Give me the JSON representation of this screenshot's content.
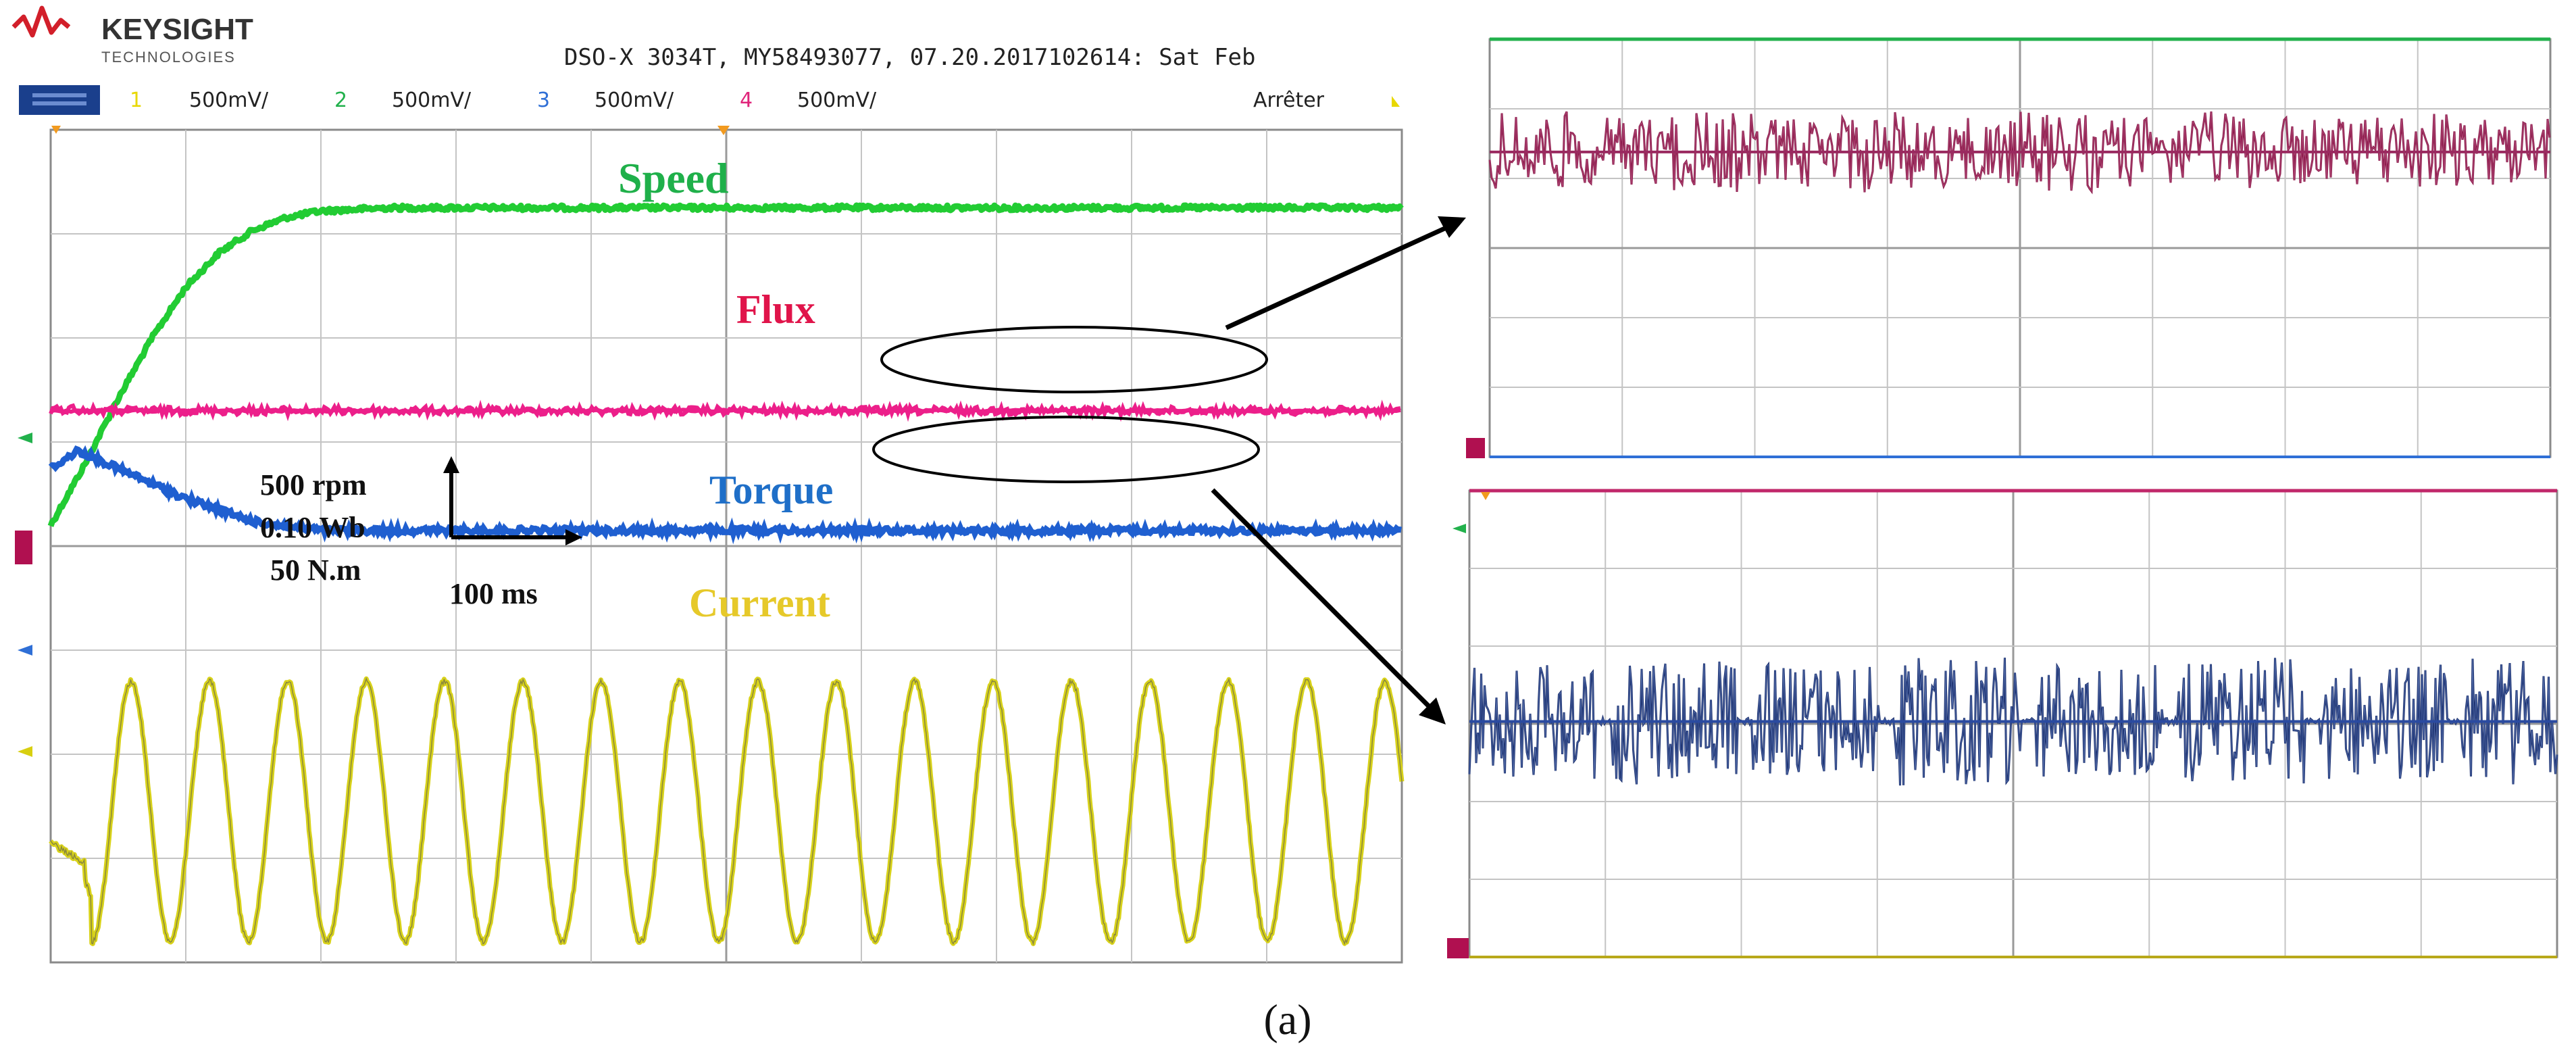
{
  "header": {
    "brand": "KEYSIGHT",
    "brand_sub": "TECHNOLOGIES",
    "instrument": "DSO-X 3034T, MY58493077, 07.20.2017102614: Sat Feb",
    "status": "Arrêter"
  },
  "channels": [
    {
      "num": "1",
      "scale": "500mV/",
      "color": "#e8d800"
    },
    {
      "num": "2",
      "scale": "500mV/",
      "color": "#22b14c"
    },
    {
      "num": "3",
      "scale": "500mV/",
      "color": "#2f6fd6"
    },
    {
      "num": "4",
      "scale": "500mV/",
      "color": "#e0247a"
    }
  ],
  "scale_labels": {
    "speed": "500 rpm",
    "flux": "0.10 Wb",
    "torque": "50 N.m",
    "time": "100 ms"
  },
  "caption": "(a)",
  "chart_data": [
    {
      "type": "line",
      "grid": true,
      "grid_divisions": [
        10,
        8
      ],
      "x_unit": "ms",
      "x_range": [
        0,
        1000
      ],
      "series": [
        {
          "name": "Speed",
          "color": "#22cc33",
          "x": [
            0,
            25,
            50,
            75,
            100,
            125,
            150,
            175,
            200,
            250,
            300,
            1000
          ],
          "y": [
            0,
            95,
            200,
            295,
            375,
            430,
            465,
            485,
            495,
            500,
            500,
            500
          ],
          "unit": "rpm"
        },
        {
          "name": "Flux",
          "color": "#ec1f8a",
          "x": [
            0,
            1000
          ],
          "y": [
            0.1,
            0.1
          ],
          "unit": "Wb",
          "ripple": "small"
        },
        {
          "name": "Torque",
          "color": "#1f5fd0",
          "x": [
            0,
            20,
            50,
            100,
            150,
            200,
            300,
            1000
          ],
          "y": [
            35,
            45,
            35,
            18,
            5,
            0,
            0,
            0
          ],
          "unit": "N.m"
        },
        {
          "name": "Current",
          "color": "#e2df23",
          "x_start": 0,
          "x_end": 1000,
          "amplitude_div": 1.25,
          "period_ms": 58,
          "initial": "transient start near -0.3 div dipping to -1.1 div at ~40 ms"
        }
      ]
    },
    {
      "type": "line",
      "grid": true,
      "grid_divisions": [
        10,
        8
      ],
      "zoom_of": "Flux",
      "series": [
        {
          "name": "Flux",
          "color": "#8a1a4a",
          "level_div": -1.7,
          "ripple_div": 0.35
        }
      ]
    },
    {
      "type": "line",
      "grid": true,
      "grid_divisions": [
        10,
        8
      ],
      "zoom_of": "Torque",
      "series": [
        {
          "name": "Torque",
          "color": "#1a2f6e",
          "level_div": 0.0,
          "ripple_div": 0.55
        }
      ]
    }
  ]
}
